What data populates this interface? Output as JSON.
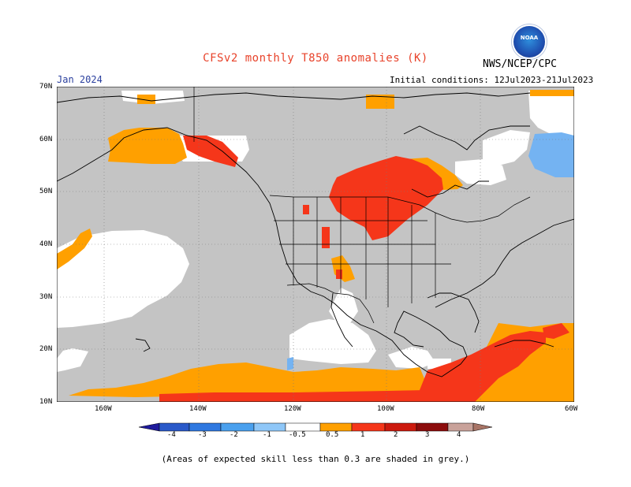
{
  "header": {
    "title": "CFSv2 monthly T850 anomalies (K)",
    "agency": "NWS/NCEP/CPC",
    "month": "Jan 2024",
    "initial_conditions": "Initial conditions: 12Jul2023-21Jul2023",
    "logo_text": "NOAA"
  },
  "map": {
    "lat_labels": [
      "70N",
      "60N",
      "50N",
      "40N",
      "30N",
      "20N",
      "10N"
    ],
    "lon_labels": [
      "160W",
      "140W",
      "120W",
      "100W",
      "80W",
      "60W"
    ],
    "colors": {
      "skill_grey": "#c4c4c4",
      "neutral": "#ffffff",
      "light_blue": "#74b3f2",
      "orange": "#ffa000",
      "red_orange": "#f5361a"
    }
  },
  "colorbar": {
    "ticks": [
      "-4",
      "-3",
      "-2",
      "-1",
      "-0.5",
      "0.5",
      "1",
      "2",
      "3",
      "4"
    ],
    "colors": [
      "#1e1a9c",
      "#2a59c9",
      "#2f78e0",
      "#4aa0ee",
      "#8fc7f8",
      "#ffffff",
      "#ffa000",
      "#f5361a",
      "#cc1a0e",
      "#8c0c0c",
      "#c9a29a",
      "#a87466"
    ]
  },
  "footer": {
    "note": "(Areas of expected skill less than 0.3 are shaded in grey.)"
  }
}
